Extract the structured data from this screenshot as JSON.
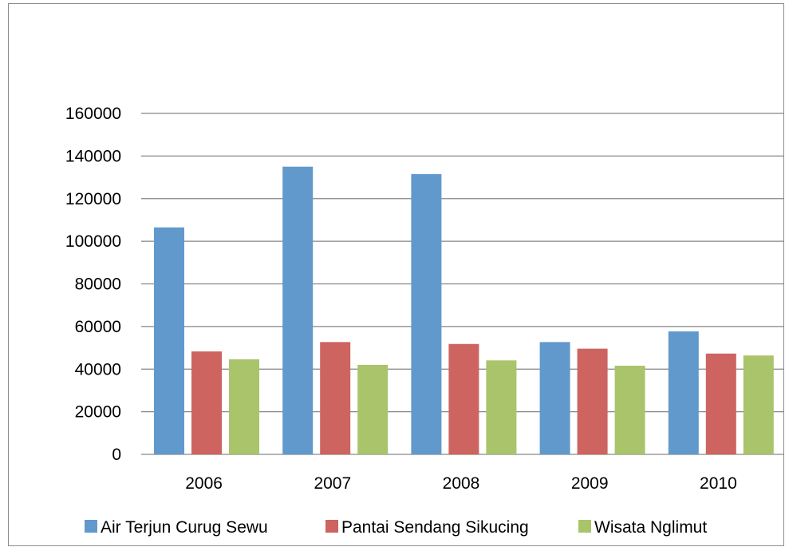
{
  "chart_data": {
    "type": "bar",
    "title": "",
    "xlabel": "",
    "ylabel": "",
    "categories": [
      "2006",
      "2007",
      "2008",
      "2009",
      "2010"
    ],
    "series": [
      {
        "name": "Air Terjun Curug Sewu",
        "color": "#6199cd",
        "values": [
          106500,
          135000,
          131500,
          52700,
          57700
        ]
      },
      {
        "name": "Pantai Sendang Sikucing",
        "color": "#cd6460",
        "values": [
          48300,
          52700,
          51800,
          49600,
          47300
        ]
      },
      {
        "name": "Wisata Nglimut",
        "color": "#a9c46b",
        "values": [
          44600,
          42000,
          44100,
          41600,
          46400
        ]
      }
    ],
    "ylim": [
      0,
      160000
    ],
    "yticks": [
      "0",
      "20000",
      "40000",
      "60000",
      "80000",
      "100000",
      "120000",
      "140000",
      "160000"
    ],
    "grid": true,
    "legend_position": "bottom"
  }
}
